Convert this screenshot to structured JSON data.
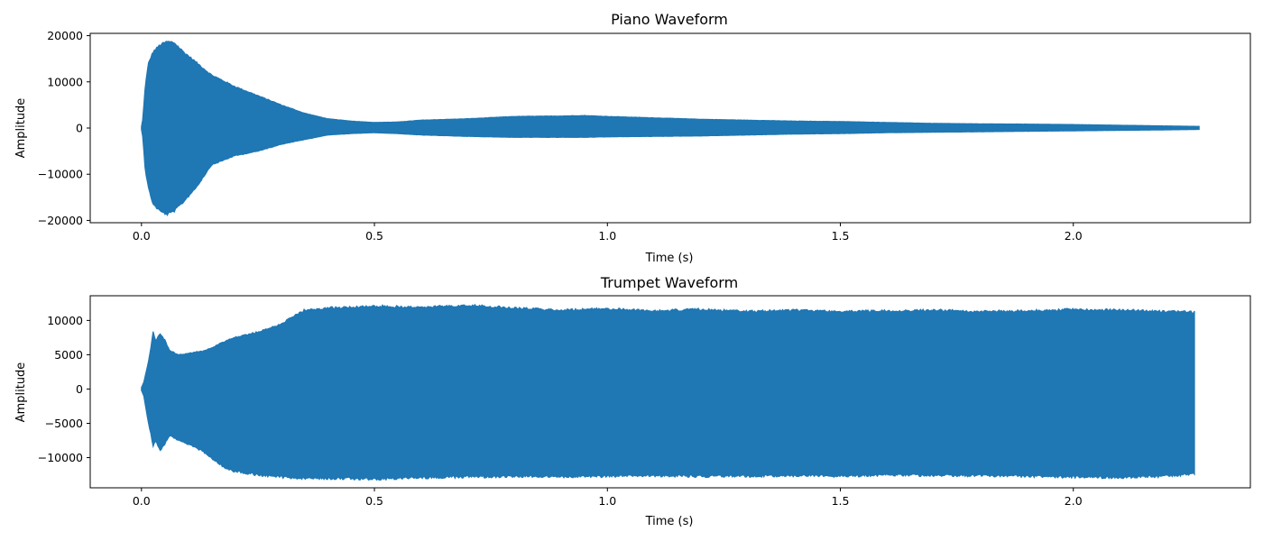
{
  "chart_data": [
    {
      "type": "area",
      "title": "Piano Waveform",
      "xlabel": "Time (s)",
      "ylabel": "Amplitude",
      "xlim": [
        -0.11,
        2.38
      ],
      "ylim": [
        -20500,
        20500
      ],
      "xticks": [
        0.0,
        0.5,
        1.0,
        1.5,
        2.0
      ],
      "xtick_labels": [
        "0.0",
        "0.5",
        "1.0",
        "1.5",
        "2.0"
      ],
      "yticks": [
        -20000,
        -10000,
        0,
        10000,
        20000
      ],
      "ytick_labels": [
        "−20000",
        "−10000",
        "0",
        "10000",
        "20000"
      ],
      "grid": false,
      "series": [
        {
          "color": "#1f77b4",
          "envelope": {
            "t": [
              0.0,
              0.003,
              0.008,
              0.015,
              0.025,
              0.04,
              0.055,
              0.07,
              0.09,
              0.12,
              0.15,
              0.2,
              0.25,
              0.3,
              0.35,
              0.4,
              0.45,
              0.5,
              0.55,
              0.6,
              0.7,
              0.8,
              0.9,
              0.95,
              1.0,
              1.1,
              1.2,
              1.3,
              1.4,
              1.5,
              1.6,
              1.7,
              1.8,
              1.9,
              2.0,
              2.1,
              2.2,
              2.27
            ],
            "upper": [
              300,
              2000,
              9000,
              14000,
              16500,
              18000,
              18700,
              18500,
              16500,
              14000,
              11500,
              9000,
              7000,
              5000,
              3200,
              2000,
              1500,
              1200,
              1300,
              1700,
              2000,
              2500,
              2600,
              2700,
              2500,
              2200,
              1900,
              1700,
              1500,
              1400,
              1200,
              1000,
              900,
              850,
              750,
              600,
              450,
              350
            ],
            "lower": [
              -300,
              -2000,
              -9000,
              -13000,
              -16500,
              -18000,
              -18700,
              -18000,
              -16000,
              -12500,
              -8000,
              -6000,
              -5000,
              -3500,
              -2500,
              -1500,
              -1200,
              -1000,
              -1200,
              -1500,
              -1800,
              -2000,
              -2000,
              -2000,
              -1900,
              -1800,
              -1700,
              -1500,
              -1300,
              -1200,
              -1000,
              -900,
              -800,
              -700,
              -600,
              -500,
              -400,
              -300
            ]
          }
        }
      ]
    },
    {
      "type": "area",
      "title": "Trumpet Waveform",
      "xlabel": "Time (s)",
      "ylabel": "Amplitude",
      "xlim": [
        -0.11,
        2.38
      ],
      "ylim": [
        -14400,
        13600
      ],
      "xticks": [
        0.0,
        0.5,
        1.0,
        1.5,
        2.0
      ],
      "xtick_labels": [
        "0.0",
        "0.5",
        "1.0",
        "1.5",
        "2.0"
      ],
      "yticks": [
        -10000,
        -5000,
        0,
        5000,
        10000
      ],
      "ytick_labels": [
        "−10000",
        "−5000",
        "0",
        "5000",
        "10000"
      ],
      "grid": false,
      "series": [
        {
          "color": "#1f77b4",
          "envelope": {
            "t": [
              0.0,
              0.005,
              0.01,
              0.015,
              0.02,
              0.025,
              0.03,
              0.04,
              0.05,
              0.06,
              0.08,
              0.1,
              0.13,
              0.15,
              0.18,
              0.2,
              0.25,
              0.3,
              0.35,
              0.4,
              0.5,
              0.6,
              0.7,
              0.8,
              0.9,
              1.0,
              1.1,
              1.2,
              1.3,
              1.4,
              1.5,
              1.6,
              1.7,
              1.8,
              1.9,
              2.0,
              2.1,
              2.2,
              2.26
            ],
            "upper": [
              200,
              1000,
              2500,
              4000,
              6000,
              8300,
              7000,
              8000,
              7200,
              5600,
              5000,
              5200,
              5500,
              6000,
              7000,
              7500,
              8300,
              9500,
              11500,
              11800,
              12100,
              11900,
              12200,
              11800,
              11500,
              11700,
              11400,
              11600,
              11300,
              11500,
              11300,
              11400,
              11500,
              11300,
              11400,
              11600,
              11500,
              11300,
              11200
            ],
            "lower": [
              -200,
              -1000,
              -3000,
              -5000,
              -6500,
              -8500,
              -7500,
              -9000,
              -8000,
              -6800,
              -7500,
              -8000,
              -9000,
              -10000,
              -11500,
              -12000,
              -12500,
              -12800,
              -13000,
              -13000,
              -13100,
              -12900,
              -12800,
              -12700,
              -12800,
              -12700,
              -12600,
              -12700,
              -12700,
              -12600,
              -12700,
              -12500,
              -12600,
              -12600,
              -12700,
              -12800,
              -12900,
              -12700,
              -12400
            ]
          }
        }
      ]
    }
  ]
}
